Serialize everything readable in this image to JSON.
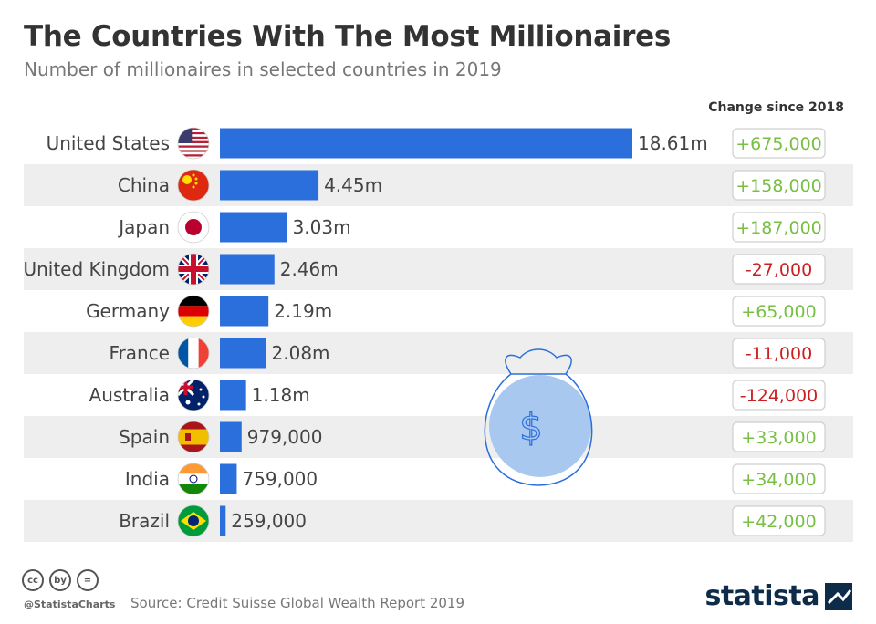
{
  "title": "The Countries With The Most Millionaires",
  "subtitle": "Number of millionaires in selected countries in 2019",
  "change_header": "Change since 2018",
  "footer": {
    "handle": "@StatistaCharts",
    "source": "Source: Credit Suisse Global Wealth Report 2019",
    "brand": "statista",
    "license_icons": [
      "cc",
      "by",
      "="
    ]
  },
  "colors": {
    "bar": "#2a6fdb",
    "positive": "#77c043",
    "negative": "#cc1f1f",
    "stripe": "#eeeeee"
  },
  "chart_data": {
    "type": "bar",
    "orientation": "horizontal",
    "title": "The Countries With The Most Millionaires",
    "subtitle": "Number of millionaires in selected countries in 2019",
    "categories": [
      "United States",
      "China",
      "Japan",
      "United Kingdom",
      "Germany",
      "France",
      "Australia",
      "Spain",
      "India",
      "Brazil"
    ],
    "flags": [
      "us-flag-icon",
      "china-flag-icon",
      "japan-flag-icon",
      "uk-flag-icon",
      "germany-flag-icon",
      "france-flag-icon",
      "australia-flag-icon",
      "spain-flag-icon",
      "india-flag-icon",
      "brazil-flag-icon"
    ],
    "values": [
      18610000,
      4450000,
      3030000,
      2460000,
      2190000,
      2080000,
      1180000,
      979000,
      759000,
      259000
    ],
    "value_labels": [
      "18.61m",
      "4.45m",
      "3.03m",
      "2.46m",
      "2.19m",
      "2.08m",
      "1.18m",
      "979,000",
      "759,000",
      "259,000"
    ],
    "change_since_2018": [
      675000,
      158000,
      187000,
      -27000,
      65000,
      -11000,
      -124000,
      33000,
      34000,
      42000
    ],
    "change_labels": [
      "+675,000",
      "+158,000",
      "+187,000",
      "-27,000",
      "+65,000",
      "-11,000",
      "-124,000",
      "+33,000",
      "+34,000",
      "+42,000"
    ],
    "decoration": "money-bag-icon"
  }
}
